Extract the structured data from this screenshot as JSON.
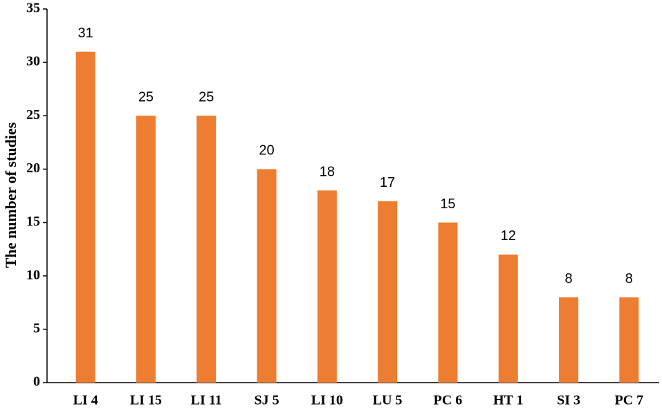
{
  "chart_data": {
    "type": "bar",
    "y_label": "The number of studies",
    "categories": [
      "LI 4",
      "LI 15",
      "LI 11",
      "SJ 5",
      "LI 10",
      "LU 5",
      "PC 6",
      "HT 1",
      "SI 3",
      "PC 7"
    ],
    "values": [
      31,
      25,
      25,
      20,
      18,
      17,
      15,
      12,
      8,
      8
    ],
    "color": "#ed7d31",
    "ylim": [
      0,
      35
    ],
    "yticks": [
      0,
      5,
      10,
      15,
      20,
      25,
      30,
      35
    ],
    "grid": false
  }
}
